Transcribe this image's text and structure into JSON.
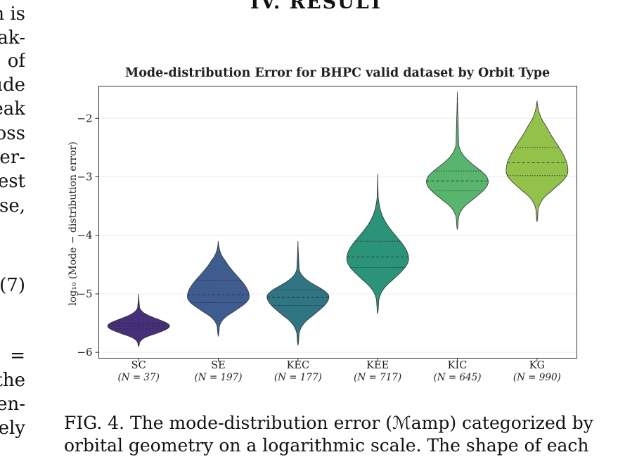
{
  "section_heading": "IV.   RESULT",
  "left_column_fragments": [
    "n is",
    "ak-",
    "of",
    "ude",
    "eak",
    "oss",
    "er-",
    "est",
    "se,",
    "(7)",
    "=",
    "the",
    "en-",
    "ely"
  ],
  "caption": {
    "line1": "FIG. 4.  The mode-distribution error (ℳamp) categorized by",
    "line2": "orbital geometry on a logarithmic scale.  The shape of each"
  },
  "chart_data": {
    "type": "violin",
    "title": "Mode-distribution Error for BHPC valid dataset by Orbit Type",
    "xlabel": "",
    "ylabel": "log₁₀ (Mode − distribution error)",
    "ylim": [
      -6.1,
      -1.45
    ],
    "yticks": [
      -2,
      -3,
      -4,
      -5,
      -6
    ],
    "ytick_labels": [
      "−2",
      "−3",
      "−4",
      "−5",
      "−6"
    ],
    "grid": "horizontal",
    "categories": [
      "SC",
      "SE",
      "KEC",
      "KEE",
      "KIC",
      "KG"
    ],
    "counts": [
      "(N = 37)",
      "(N = 197)",
      "(N = 177)",
      "(N = 717)",
      "(N = 645)",
      "(N = 990)"
    ],
    "colors": [
      "#46307c",
      "#3f5c91",
      "#2f7584",
      "#2b9378",
      "#58b56e",
      "#92c24a"
    ],
    "violins": [
      {
        "min": -5.9,
        "max": -5.0,
        "q1": -5.6,
        "median": -5.55,
        "q3": -5.5,
        "mode": -5.55
      },
      {
        "min": -5.72,
        "max": -4.1,
        "q1": -5.15,
        "median": -5.02,
        "q3": -4.77,
        "mode": -5.05
      },
      {
        "min": -5.88,
        "max": -4.1,
        "q1": -5.2,
        "median": -5.06,
        "q3": -4.93,
        "mode": -5.05
      },
      {
        "min": -5.34,
        "max": -2.95,
        "q1": -4.55,
        "median": -4.37,
        "q3": -4.1,
        "mode": -4.4
      },
      {
        "min": -3.9,
        "max": -1.55,
        "q1": -3.24,
        "median": -3.07,
        "q3": -2.9,
        "mode": -3.08
      },
      {
        "min": -3.77,
        "max": -1.7,
        "q1": -2.98,
        "median": -2.76,
        "q3": -2.5,
        "mode": -2.9
      }
    ]
  }
}
